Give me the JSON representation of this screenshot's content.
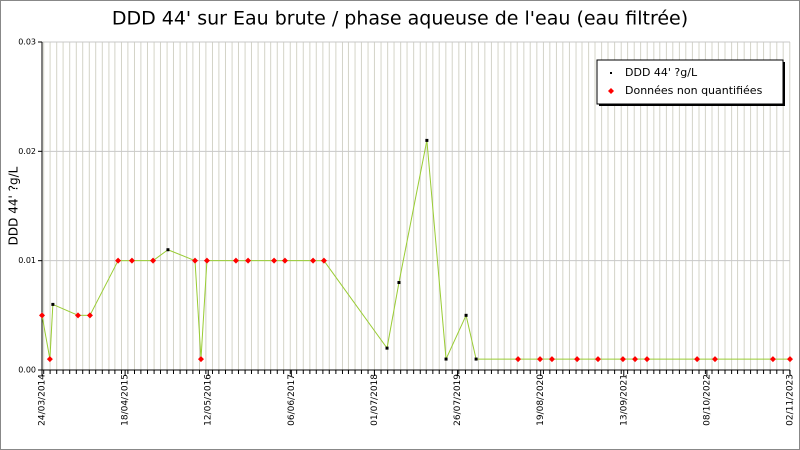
{
  "chart_data": {
    "type": "line",
    "title": "DDD 44' sur Eau brute / phase aqueuse de l'eau (eau filtrée)",
    "ylabel": "DDD 44' ?g/L",
    "x": [
      "24/03/2014",
      "30/04/2014",
      "14/05/2014",
      "09/09/2014",
      "04/11/2014",
      "16/03/2015",
      "20/05/2015",
      "27/08/2015",
      "05/11/2015",
      "11/03/2016",
      "08/04/2016",
      "06/05/2016",
      "19/09/2016",
      "15/11/2016",
      "17/03/2017",
      "07/05/2017",
      "16/09/2017",
      "06/11/2017",
      "29/08/2018",
      "24/10/2018",
      "04/03/2019",
      "02/06/2019",
      "04/09/2019",
      "21/10/2019",
      "05/05/2020",
      "16/08/2020",
      "11/10/2020",
      "06/02/2021",
      "15/05/2021",
      "09/09/2021",
      "05/11/2021",
      "31/12/2021",
      "23/08/2022",
      "15/11/2022",
      "14/08/2023",
      "02/11/2023"
    ],
    "series": [
      {
        "name": "DDD 44' ?g/L",
        "color": "#000000",
        "values": [
          null,
          null,
          0.006,
          null,
          null,
          null,
          null,
          null,
          0.011,
          null,
          null,
          null,
          null,
          null,
          null,
          null,
          null,
          null,
          0.002,
          0.008,
          0.021,
          0.001,
          0.005,
          0.001,
          null,
          null,
          null,
          null,
          null,
          null,
          null,
          null,
          null,
          null,
          null,
          null
        ]
      },
      {
        "name": "Données non quantifiées",
        "color": "#ff0000",
        "values": [
          0.005,
          0.001,
          null,
          0.005,
          0.005,
          0.01,
          0.01,
          0.01,
          null,
          0.01,
          0.001,
          0.01,
          0.01,
          0.01,
          0.01,
          0.01,
          0.01,
          0.01,
          null,
          null,
          null,
          null,
          null,
          null,
          0.001,
          0.001,
          0.001,
          0.001,
          0.001,
          0.001,
          0.001,
          0.001,
          0.001,
          0.001,
          0.001,
          0.001
        ]
      }
    ],
    "line_color": "#99cc33",
    "xlim": [
      "24/03/2014",
      "02/11/2023"
    ],
    "xticks": [
      "24/03/2014",
      "18/04/2015",
      "12/05/2016",
      "06/06/2017",
      "01/07/2018",
      "26/07/2019",
      "19/08/2020",
      "13/09/2021",
      "08/10/2022",
      "02/11/2023"
    ],
    "ylim": [
      0,
      0.03
    ],
    "yticks": [
      {
        "value": 0,
        "label": "0.00"
      },
      {
        "value": 0.01,
        "label": "0.01"
      },
      {
        "value": 0.02,
        "label": "0.02"
      },
      {
        "value": 0.03,
        "label": "0.03"
      }
    ],
    "grid": true,
    "legend": "top-right"
  }
}
